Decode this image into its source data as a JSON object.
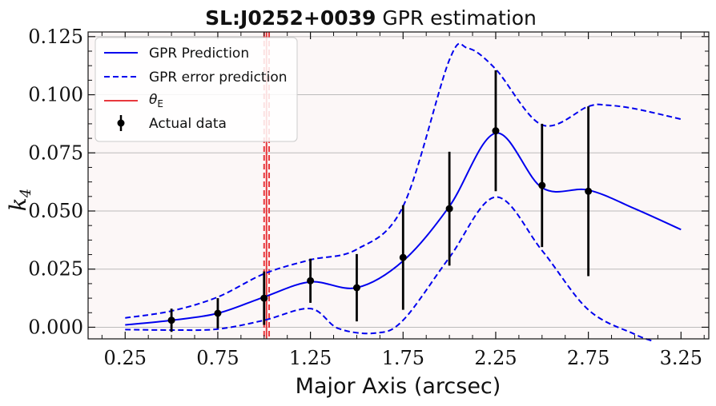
{
  "chart_data": {
    "type": "line",
    "title_bold": "SL:J0252+0039",
    "title_rest": " GPR estimation",
    "xlabel": "Major Axis (arcsec)",
    "ylabel_main": "k",
    "ylabel_sub": "4",
    "xlim": [
      0.05,
      3.4
    ],
    "ylim": [
      -0.005,
      0.127
    ],
    "xticks": [
      0.25,
      0.75,
      1.25,
      1.75,
      2.25,
      2.75,
      3.25
    ],
    "xtick_labels": [
      "0.25",
      "0.75",
      "1.25",
      "1.75",
      "2.25",
      "2.75",
      "3.25"
    ],
    "xminor_step": 0.125,
    "yticks": [
      0.0,
      0.025,
      0.05,
      0.075,
      0.1,
      0.125
    ],
    "ytick_labels": [
      "0.000",
      "0.025",
      "0.050",
      "0.075",
      "0.100",
      "0.125"
    ],
    "yminor_step": 0.00625,
    "grid": "horizontal",
    "legend_position": "top-left",
    "colors": {
      "prediction": "#0000ee",
      "theta": "#e8383d",
      "data": "#000000",
      "plot_bg": "#fcf7f7",
      "grid": "#bbbbbb"
    },
    "series": [
      {
        "name": "GPR Prediction",
        "style": "solid",
        "x": [
          0.25,
          0.5,
          0.75,
          1.0,
          1.25,
          1.5,
          1.75,
          2.0,
          2.25,
          2.5,
          2.75,
          3.0,
          3.25
        ],
        "y": [
          0.001,
          0.003,
          0.006,
          0.013,
          0.0195,
          0.017,
          0.0285,
          0.052,
          0.0835,
          0.06,
          0.059,
          0.051,
          0.042
        ]
      },
      {
        "name": "GPR error prediction",
        "style": "dashed",
        "x": [
          0.25,
          0.5,
          0.75,
          1.0,
          1.25,
          1.5,
          1.75,
          2.0,
          2.1,
          2.25,
          2.5,
          2.75,
          2.85,
          3.0,
          3.25
        ],
        "y": [
          0.004,
          0.007,
          0.013,
          0.023,
          0.029,
          0.0335,
          0.052,
          0.115,
          0.12,
          0.111,
          0.087,
          0.095,
          0.0955,
          0.094,
          0.0895
        ]
      },
      {
        "name": "",
        "style": "dashed",
        "x": [
          0.25,
          0.5,
          0.75,
          1.0,
          1.25,
          1.4,
          1.6,
          1.75,
          2.0,
          2.25,
          2.5,
          2.75,
          3.0,
          3.1
        ],
        "y": [
          -0.001,
          -0.0012,
          -0.0008,
          0.003,
          0.008,
          -0.0005,
          -0.0025,
          0.003,
          0.03,
          0.056,
          0.033,
          0.0075,
          -0.003,
          -0.006
        ]
      }
    ],
    "theta_label_main": "θ",
    "theta_label_sub": "E",
    "theta_lines": [
      {
        "x": 1.0,
        "style": "dashed"
      },
      {
        "x": 1.013,
        "style": "solid"
      },
      {
        "x": 1.027,
        "style": "dashed"
      }
    ],
    "actual_data": {
      "name": "Actual data",
      "x": [
        0.5,
        0.75,
        1.0,
        1.25,
        1.5,
        1.75,
        2.0,
        2.25,
        2.5,
        2.75
      ],
      "y": [
        0.003,
        0.006,
        0.0125,
        0.02,
        0.017,
        0.03,
        0.051,
        0.0845,
        0.061,
        0.0585
      ],
      "yerr": [
        0.005,
        0.0065,
        0.0115,
        0.0095,
        0.0145,
        0.0225,
        0.0245,
        0.026,
        0.0265,
        0.0365
      ]
    }
  }
}
